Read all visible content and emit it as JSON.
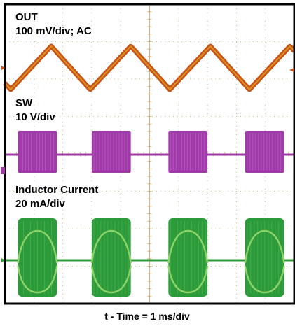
{
  "chart_data": {
    "type": "line",
    "title": "",
    "xlabel": "t - Time = 1 ms/div",
    "grid": true,
    "x_range_ms": [
      0,
      10
    ],
    "channels": [
      {
        "name": "OUT",
        "scale": "100 mV/div; AC",
        "color": "#c8541a",
        "waveform": "triangle",
        "period_ms": 2.75,
        "peak_to_peak_mV": 80,
        "peaks_ms": [
          1.6,
          4.35,
          7.1,
          9.85
        ],
        "valleys_ms": [
          0.2,
          2.95,
          5.7,
          8.45
        ]
      },
      {
        "name": "SW",
        "scale": "10 V/div",
        "color": "#a03aa8",
        "waveform": "burst",
        "burst_intervals_ms": [
          [
            0.45,
            1.8
          ],
          [
            3.0,
            4.35
          ],
          [
            5.65,
            7.0
          ],
          [
            8.3,
            9.65
          ]
        ]
      },
      {
        "name": "Inductor Current",
        "scale": "20 mA/div",
        "color": "#2a9a3a",
        "waveform": "burst",
        "burst_intervals_ms": [
          [
            0.45,
            1.8
          ],
          [
            3.0,
            4.35
          ],
          [
            5.65,
            7.0
          ],
          [
            8.3,
            9.65
          ]
        ]
      }
    ]
  }
}
